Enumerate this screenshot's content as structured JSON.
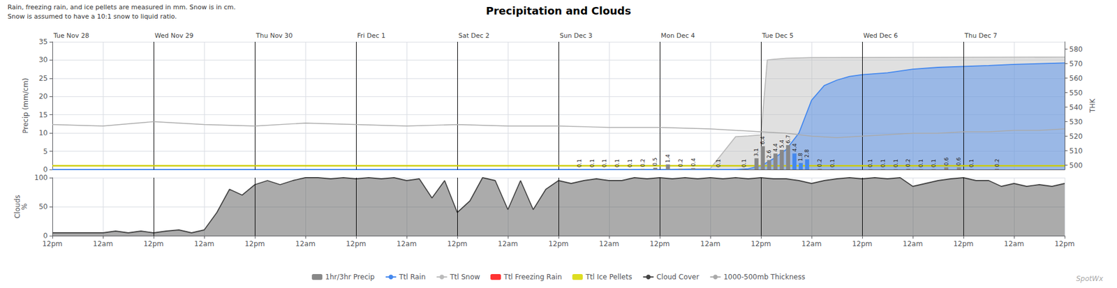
{
  "chart_data": [
    {
      "type": "bar",
      "title": "Precipitation and Clouds",
      "subtitle": [
        "Rain, freezing rain, and ice pellets are measured in mm. Snow is in cm.",
        "Snow is assumed to have a 10:1 snow to liquid ratio."
      ],
      "xlim": [
        0,
        160
      ],
      "xticks": [
        0,
        8,
        16,
        24,
        32,
        40,
        48,
        56,
        64,
        72,
        80,
        88,
        96,
        104,
        112,
        120,
        128,
        136,
        144,
        152,
        160
      ],
      "ylim": [
        0,
        35
      ],
      "yticks": [
        0,
        5,
        10,
        15,
        20,
        25,
        30,
        35
      ],
      "ylabel": "Precip (mm/cm)",
      "y2lim": [
        497,
        585
      ],
      "y2ticks": [
        500,
        510,
        520,
        530,
        540,
        550,
        560,
        570,
        580
      ],
      "y2label": "THK",
      "grid": true,
      "legend": "bottom",
      "tick_labels": "y",
      "annotations": [
        {
          "x": 0,
          "text": "Tue Nov 28"
        },
        {
          "x": 16,
          "text": "Wed Nov 29"
        },
        {
          "x": 32,
          "text": "Thu Nov 30"
        },
        {
          "x": 48,
          "text": "Fri Dec 1"
        },
        {
          "x": 64,
          "text": "Sat Dec 2"
        },
        {
          "x": 80,
          "text": "Sun Dec 3"
        },
        {
          "x": 96,
          "text": "Mon Dec 4"
        },
        {
          "x": 112,
          "text": "Tue Dec 5"
        },
        {
          "x": 128,
          "text": "Wed Dec 6"
        },
        {
          "x": 144,
          "text": "Thu Dec 7"
        }
      ],
      "vlines": [
        16,
        32,
        48,
        64,
        80,
        96,
        112,
        128,
        144
      ],
      "hlines": [
        {
          "y": 1.0,
          "color": "#cccc00"
        }
      ],
      "watermark": "SpotWx",
      "series": [
        {
          "name": "1hr/3hr Precip",
          "type": "bar",
          "color": "#888888",
          "data_labels": true,
          "x": [
            84,
            86,
            88,
            90,
            92,
            94,
            96,
            98,
            100,
            102,
            106,
            110,
            112,
            113,
            114,
            115,
            116,
            117,
            118,
            119,
            120,
            122,
            124,
            130,
            132,
            134,
            136,
            138,
            140,
            142,
            144,
            146,
            150
          ],
          "values": [
            0.1,
            0.1,
            0.1,
            0.1,
            0.1,
            0.2,
            0.5,
            1.4,
            0.2,
            0.4,
            0.1,
            0.1,
            3.1,
            6.4,
            2.6,
            4.4,
            5.4,
            6.7,
            4.4,
            1.8,
            2.8,
            0.2,
            0.1,
            0.1,
            0.1,
            0.1,
            0.2,
            0.1,
            0.1,
            0.6,
            0.6,
            0.1,
            0.2
          ],
          "colors": [
            "#888888",
            "#888888",
            "#888888",
            "#888888",
            "#888888",
            "#888888",
            "#888888",
            "#888888",
            "#888888",
            "#888888",
            "#888888",
            "#888888",
            "#888888",
            "#888888",
            "#888888",
            "#888888",
            "#888888",
            "#888888",
            "#4488ee",
            "#4488ee",
            "#4488ee",
            "#888888",
            "#888888",
            "#888888",
            "#888888",
            "#888888",
            "#888888",
            "#888888",
            "#888888",
            "#888888",
            "#888888",
            "#888888",
            "#888888"
          ]
        },
        {
          "name": "Ttl Rain",
          "type": "area",
          "color": "#4488ee",
          "x": [
            0,
            108,
            110,
            112,
            114,
            116,
            118,
            120,
            122,
            124,
            126,
            128,
            132,
            136,
            140,
            148,
            152,
            156,
            160
          ],
          "values": [
            0,
            0,
            0.2,
            1.0,
            3.0,
            5.5,
            10.0,
            19.0,
            23.0,
            24.5,
            25.5,
            26.0,
            26.5,
            27.5,
            28.0,
            28.5,
            28.8,
            29.0,
            29.2
          ]
        },
        {
          "name": "Ttl Snow",
          "type": "area",
          "color": "#bbbbbb",
          "x": [
            0,
            96,
            104,
            108,
            110,
            112,
            113,
            114,
            116,
            120,
            160
          ],
          "values": [
            0,
            0,
            0.3,
            9.0,
            9.2,
            9.5,
            30.0,
            30.2,
            30.5,
            30.7,
            30.8
          ]
        },
        {
          "name": "Ttl Freezing Rain",
          "type": "bar",
          "color": "#ff3333",
          "x": [],
          "values": []
        },
        {
          "name": "Ttl Ice Pellets",
          "type": "bar",
          "color": "#dddd22",
          "x": [],
          "values": []
        },
        {
          "name": "1000-500mb Thickness",
          "type": "line",
          "color": "#aaaaaa",
          "axis": "y2",
          "x": [
            0,
            8,
            16,
            24,
            32,
            40,
            48,
            56,
            64,
            72,
            80,
            88,
            96,
            104,
            108,
            112,
            116,
            120,
            124,
            128,
            132,
            136,
            140,
            144,
            148,
            152,
            156,
            160
          ],
          "values": [
            528,
            527,
            530,
            528,
            527,
            529,
            528,
            527,
            528,
            527,
            527,
            526,
            526,
            525,
            524,
            523,
            522,
            520,
            519,
            520,
            521,
            522,
            522,
            523,
            523,
            524,
            524,
            525
          ]
        }
      ]
    },
    {
      "type": "area",
      "xlim": [
        0,
        160
      ],
      "xticks": [
        {
          "value": 0,
          "label": "12pm"
        },
        {
          "value": 8,
          "label": "12am"
        },
        {
          "value": 16,
          "label": "12pm"
        },
        {
          "value": 24,
          "label": "12am"
        },
        {
          "value": 32,
          "label": "12pm"
        },
        {
          "value": 40,
          "label": "12am"
        },
        {
          "value": 48,
          "label": "12pm"
        },
        {
          "value": 56,
          "label": "12am"
        },
        {
          "value": 64,
          "label": "12pm"
        },
        {
          "value": 72,
          "label": "12am"
        },
        {
          "value": 80,
          "label": "12pm"
        },
        {
          "value": 88,
          "label": "12am"
        },
        {
          "value": 96,
          "label": "12pm"
        },
        {
          "value": 104,
          "label": "12am"
        },
        {
          "value": 112,
          "label": "12pm"
        },
        {
          "value": 120,
          "label": "12am"
        },
        {
          "value": 128,
          "label": "12pm"
        },
        {
          "value": 136,
          "label": "12am"
        },
        {
          "value": 144,
          "label": "12pm"
        },
        {
          "value": 152,
          "label": "12am"
        },
        {
          "value": 160,
          "label": "12pm"
        }
      ],
      "ylim": [
        0,
        100
      ],
      "yticks": [
        0,
        50,
        100
      ],
      "ylabel": "Clouds\n%",
      "grid": true,
      "vlines": [
        16,
        32,
        48,
        64,
        80,
        96,
        112,
        128,
        144
      ],
      "series": [
        {
          "name": "Cloud Cover",
          "type": "area",
          "color": "#444444",
          "x": [
            0,
            8,
            10,
            12,
            14,
            16,
            18,
            20,
            22,
            24,
            26,
            28,
            30,
            32,
            34,
            36,
            38,
            40,
            42,
            44,
            46,
            48,
            50,
            52,
            54,
            56,
            58,
            60,
            62,
            64,
            66,
            68,
            70,
            72,
            74,
            76,
            78,
            80,
            82,
            84,
            86,
            88,
            90,
            92,
            94,
            96,
            98,
            100,
            102,
            104,
            106,
            108,
            110,
            112,
            114,
            116,
            118,
            120,
            122,
            124,
            126,
            128,
            130,
            132,
            134,
            136,
            138,
            140,
            142,
            144,
            146,
            148,
            150,
            152,
            154,
            156,
            158,
            160
          ],
          "values": [
            5,
            5,
            8,
            5,
            8,
            5,
            8,
            10,
            5,
            10,
            40,
            80,
            70,
            88,
            95,
            88,
            95,
            100,
            100,
            98,
            100,
            98,
            100,
            98,
            100,
            95,
            98,
            65,
            95,
            40,
            60,
            100,
            95,
            45,
            95,
            45,
            80,
            95,
            90,
            95,
            98,
            95,
            95,
            100,
            98,
            100,
            98,
            100,
            98,
            100,
            98,
            100,
            98,
            100,
            98,
            98,
            95,
            90,
            95,
            98,
            100,
            98,
            100,
            98,
            100,
            85,
            90,
            95,
            98,
            100,
            95,
            95,
            85,
            90,
            85,
            88,
            85,
            90
          ]
        }
      ]
    }
  ]
}
